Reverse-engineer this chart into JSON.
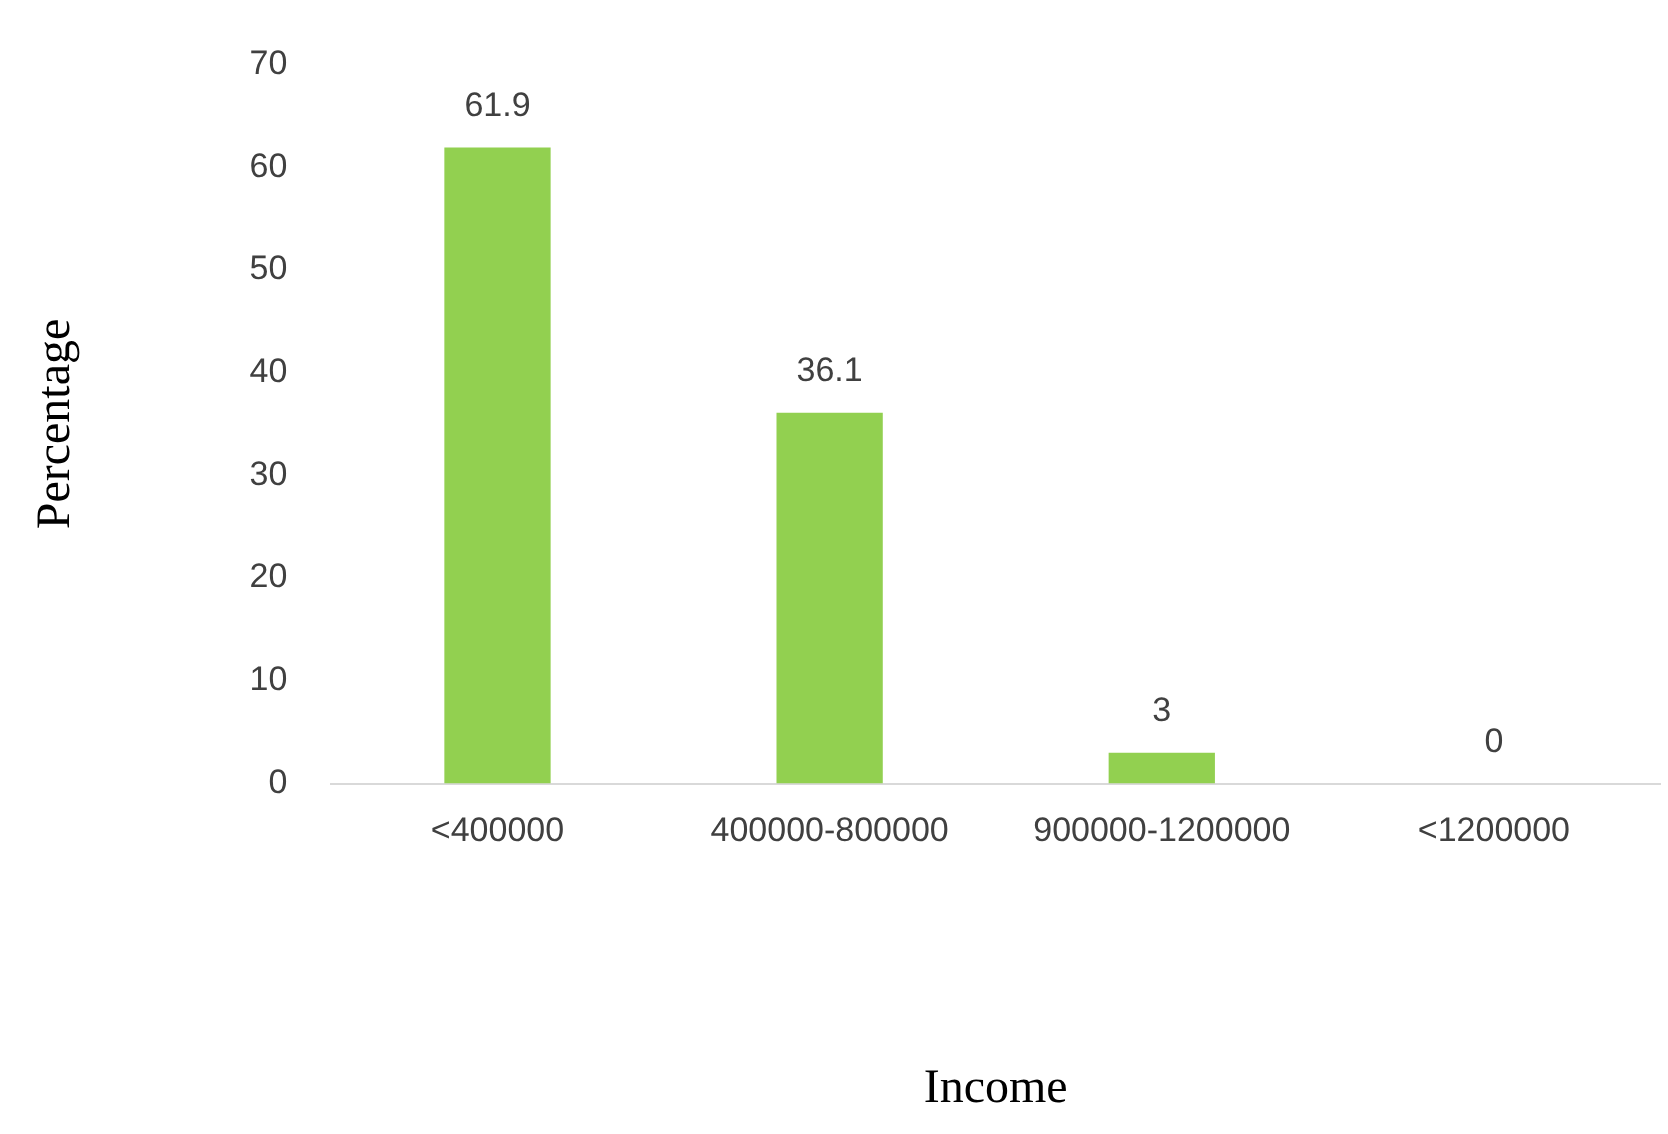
{
  "chart_data": {
    "type": "bar",
    "xlabel": "Income",
    "ylabel": "Percentage",
    "categories": [
      "<400000",
      "400000-800000",
      "900000-1200000",
      "<1200000"
    ],
    "values": [
      61.9,
      36.1,
      3,
      0
    ],
    "color": "#92d050",
    "ylim": [
      0,
      70
    ],
    "yticks": [
      0,
      10,
      20,
      30,
      40,
      50,
      60,
      70
    ],
    "grid": false,
    "legend": false,
    "data_labels": true
  }
}
